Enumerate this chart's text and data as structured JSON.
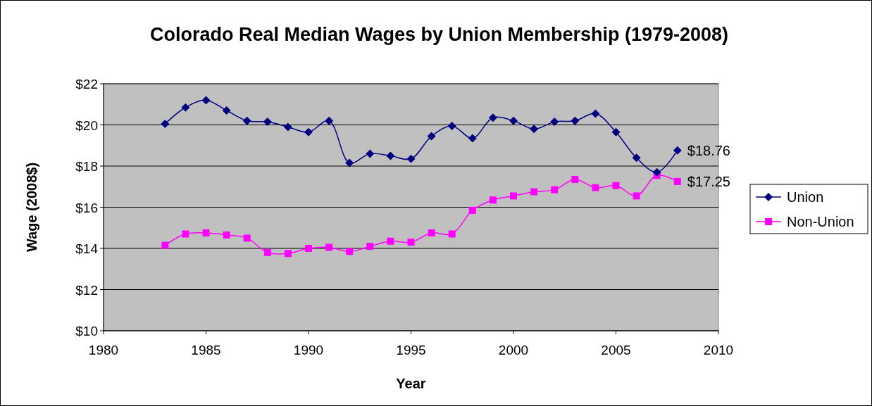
{
  "chart_data": {
    "type": "line",
    "title": "Colorado Real Median Wages by Union Membership (1979-2008)",
    "xlabel": "Year",
    "ylabel": "Wage (2008$)",
    "x": [
      1983,
      1984,
      1985,
      1986,
      1987,
      1988,
      1989,
      1990,
      1991,
      1992,
      1993,
      1994,
      1995,
      1996,
      1997,
      1998,
      1999,
      2000,
      2001,
      2002,
      2003,
      2004,
      2005,
      2006,
      2007,
      2008
    ],
    "series": [
      {
        "name": "Union",
        "color": "#000080",
        "marker": "diamond",
        "values": [
          20.05,
          20.85,
          21.2,
          20.7,
          20.2,
          20.15,
          19.9,
          19.65,
          20.2,
          18.15,
          18.6,
          18.5,
          18.35,
          19.45,
          19.95,
          19.35,
          20.35,
          20.2,
          19.8,
          20.15,
          20.2,
          20.55,
          19.65,
          18.4,
          17.7,
          18.76
        ],
        "value_labels": [
          null,
          null,
          null,
          null,
          null,
          null,
          null,
          null,
          null,
          null,
          null,
          null,
          null,
          null,
          null,
          null,
          null,
          null,
          null,
          null,
          null,
          null,
          null,
          null,
          null,
          "$18.76"
        ]
      },
      {
        "name": "Non-Union",
        "color": "#ff00ff",
        "marker": "square",
        "values": [
          14.15,
          14.7,
          14.75,
          14.65,
          14.5,
          13.8,
          13.75,
          14.0,
          14.05,
          13.85,
          14.1,
          14.35,
          14.3,
          14.75,
          14.7,
          15.85,
          16.35,
          16.55,
          16.75,
          16.85,
          17.35,
          16.95,
          17.05,
          16.55,
          17.55,
          17.25
        ],
        "value_labels": [
          null,
          null,
          null,
          null,
          null,
          null,
          null,
          null,
          null,
          null,
          null,
          null,
          null,
          null,
          null,
          null,
          null,
          null,
          null,
          null,
          null,
          null,
          null,
          null,
          null,
          "$17.25"
        ]
      }
    ],
    "xlim": [
      1980,
      2010
    ],
    "xticks": [
      1980,
      1985,
      1990,
      1995,
      2000,
      2005,
      2010
    ],
    "ylim": [
      10,
      22
    ],
    "yticks": [
      {
        "value": 10,
        "label": "$10"
      },
      {
        "value": 12,
        "label": "$12"
      },
      {
        "value": 14,
        "label": "$14"
      },
      {
        "value": 16,
        "label": "$16"
      },
      {
        "value": 18,
        "label": "$18"
      },
      {
        "value": 20,
        "label": "$20"
      },
      {
        "value": 22,
        "label": "$22"
      }
    ],
    "grid": "y",
    "legend": "right",
    "line_style": "solid"
  }
}
